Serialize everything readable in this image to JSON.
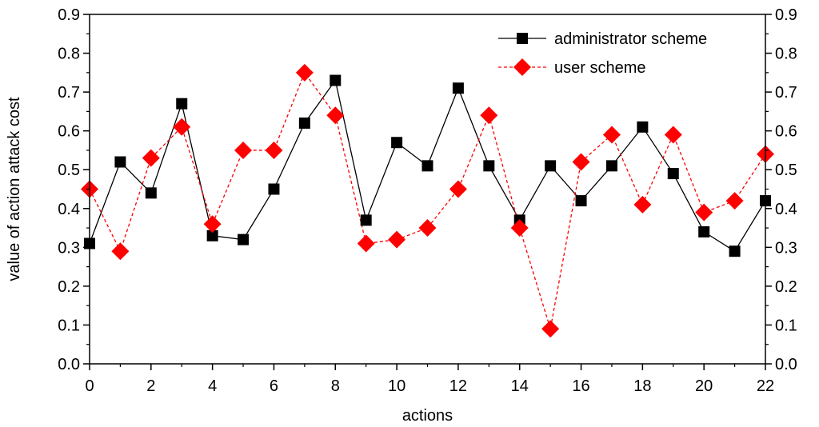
{
  "chart_data": {
    "type": "line",
    "title": "",
    "xlabel": "actions",
    "ylabel": "value of action attack cost",
    "x": [
      0,
      1,
      2,
      3,
      4,
      5,
      6,
      7,
      8,
      9,
      10,
      11,
      12,
      13,
      14,
      15,
      16,
      17,
      18,
      19,
      20,
      21,
      22
    ],
    "xlim": [
      0,
      22
    ],
    "ylim": [
      0,
      0.9
    ],
    "x_ticks": [
      0,
      2,
      4,
      6,
      8,
      10,
      12,
      14,
      16,
      18,
      20,
      22
    ],
    "y_ticks": [
      0.0,
      0.1,
      0.2,
      0.3,
      0.4,
      0.5,
      0.6,
      0.7,
      0.8,
      0.9
    ],
    "x_tick_labels": [
      "0",
      "2",
      "4",
      "6",
      "8",
      "10",
      "12",
      "14",
      "16",
      "18",
      "20",
      "22"
    ],
    "y_tick_labels": [
      "0.0",
      "0.1",
      "0.2",
      "0.3",
      "0.4",
      "0.5",
      "0.6",
      "0.7",
      "0.8",
      "0.9"
    ],
    "grid": false,
    "legend_position": "top-right",
    "series": [
      {
        "name": "administrator scheme",
        "color": "#000000",
        "marker": "square",
        "line_style": "solid",
        "values": [
          0.31,
          0.52,
          0.44,
          0.67,
          0.33,
          0.32,
          0.45,
          0.62,
          0.73,
          0.37,
          0.57,
          0.51,
          0.71,
          0.51,
          0.37,
          0.51,
          0.42,
          0.51,
          0.61,
          0.49,
          0.34,
          0.29,
          0.42
        ]
      },
      {
        "name": "user scheme",
        "color": "#ff0000",
        "marker": "diamond",
        "line_style": "dashed",
        "values": [
          0.45,
          0.29,
          0.53,
          0.61,
          0.36,
          0.55,
          0.55,
          0.75,
          0.64,
          0.31,
          0.32,
          0.35,
          0.45,
          0.64,
          0.35,
          0.09,
          0.52,
          0.59,
          0.41,
          0.59,
          0.39,
          0.42,
          0.54
        ]
      }
    ]
  }
}
